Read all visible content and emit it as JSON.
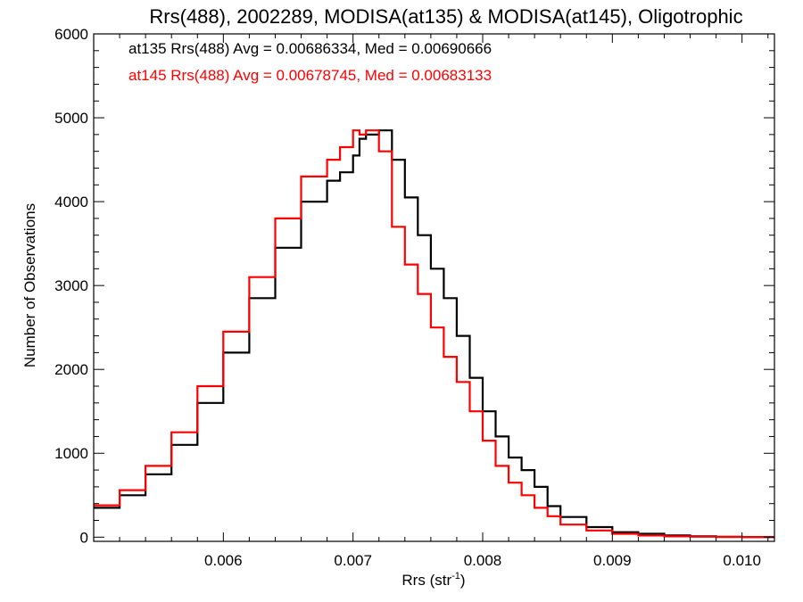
{
  "chart_data": {
    "type": "line",
    "title": "Rrs(488), 2002289, MODISA(at135) & MODISA(at145), Oligotrophic",
    "xlabel": "Rrs (str",
    "xlabel_superscript": "-1",
    "xlabel_suffix": ")",
    "ylabel": "Number of Observations",
    "xlim": [
      0.005,
      0.01025
    ],
    "ylim": [
      -50,
      6000
    ],
    "x_ticks": [
      0.006,
      0.007,
      0.008,
      0.009,
      0.01
    ],
    "x_tick_labels": [
      "0.006",
      "0.007",
      "0.008",
      "0.009",
      "0.010"
    ],
    "y_ticks": [
      0,
      1000,
      2000,
      3000,
      4000,
      5000,
      6000
    ],
    "y_tick_labels": [
      "0",
      "1000",
      "2000",
      "3000",
      "4000",
      "5000",
      "6000"
    ],
    "grid": false,
    "legend": "top-left",
    "annotations": [
      {
        "text": "at135 Rrs(488) Avg = 0.00686334, Med = 0.00690666",
        "color": "#000000"
      },
      {
        "text": "at145 Rrs(488) Avg = 0.00678745, Med = 0.00683133",
        "color": "#ff0000"
      }
    ],
    "series": [
      {
        "name": "at135",
        "color": "#000000",
        "x": [
          0.005,
          0.0052,
          0.0054,
          0.0056,
          0.0058,
          0.006,
          0.0062,
          0.0064,
          0.0066,
          0.0068,
          0.0069,
          0.007,
          0.00705,
          0.0071,
          0.0072,
          0.0073,
          0.0074,
          0.0075,
          0.0076,
          0.0077,
          0.0078,
          0.0079,
          0.008,
          0.0081,
          0.0082,
          0.0083,
          0.0084,
          0.0085,
          0.0086,
          0.0088,
          0.009,
          0.0092,
          0.0094,
          0.0096,
          0.0098,
          0.01,
          0.01025
        ],
        "y": [
          350,
          500,
          750,
          1100,
          1600,
          2200,
          2850,
          3450,
          4000,
          4250,
          4350,
          4550,
          4750,
          4800,
          4850,
          4500,
          4050,
          3600,
          3200,
          2850,
          2400,
          1900,
          1500,
          1200,
          950,
          800,
          600,
          370,
          240,
          120,
          60,
          40,
          20,
          10,
          5,
          2,
          0
        ]
      },
      {
        "name": "at145",
        "color": "#ff0000",
        "x": [
          0.005,
          0.0052,
          0.0054,
          0.0056,
          0.0058,
          0.006,
          0.0062,
          0.0064,
          0.0066,
          0.0068,
          0.0069,
          0.007,
          0.00705,
          0.0071,
          0.0072,
          0.0073,
          0.0074,
          0.0075,
          0.0076,
          0.0077,
          0.0078,
          0.0079,
          0.008,
          0.0081,
          0.0082,
          0.0083,
          0.0084,
          0.0085,
          0.0086,
          0.0088,
          0.009,
          0.0092,
          0.0094,
          0.0096,
          0.0098,
          0.01,
          0.01025
        ],
        "y": [
          380,
          560,
          850,
          1250,
          1800,
          2450,
          3100,
          3800,
          4300,
          4500,
          4650,
          4850,
          4800,
          4850,
          4600,
          3700,
          3250,
          2900,
          2500,
          2150,
          1850,
          1500,
          1150,
          850,
          650,
          500,
          350,
          250,
          150,
          80,
          40,
          20,
          10,
          5,
          2,
          1,
          0
        ]
      }
    ]
  }
}
